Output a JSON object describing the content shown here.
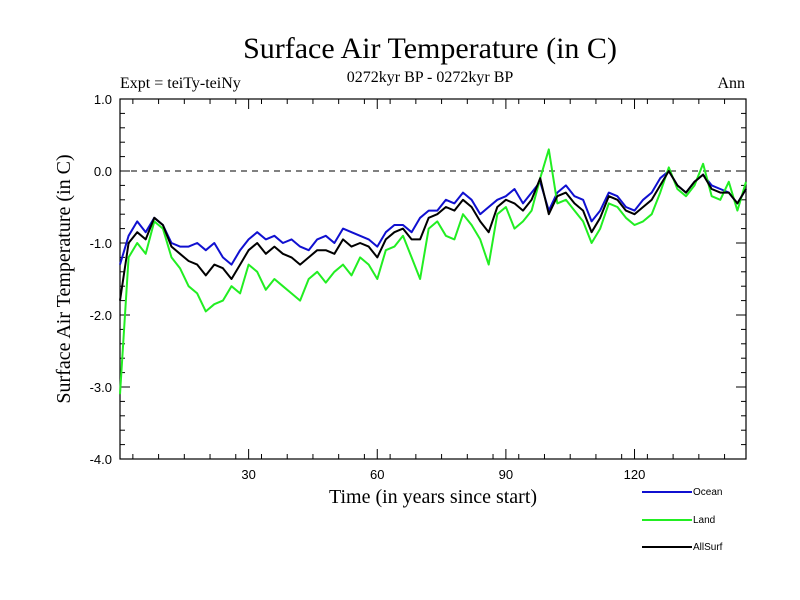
{
  "chart_data": {
    "type": "line",
    "title": "Surface Air Temperature (in C)",
    "subtitle": "0272kyr BP - 0272kyr BP",
    "experiment": "Expt = teiTy-teiNy",
    "season": "Ann",
    "xlabel": "Time (in years since start)",
    "ylabel": "Surface Air Temperature (in C)",
    "xlim": [
      0,
      146
    ],
    "ylim": [
      -4.0,
      1.0
    ],
    "xticks": [
      30,
      60,
      90,
      120
    ],
    "yticks": [
      -4.0,
      -3.0,
      -2.0,
      -1.0,
      0.0,
      1.0
    ],
    "ytick_labels": [
      "-4.0",
      "-3.0",
      "-2.0",
      "-1.0",
      "0.0",
      "1.0"
    ],
    "reference_line": 0.0,
    "series": [
      {
        "name": "Ocean",
        "color": "#1010d0",
        "x": [
          0,
          2,
          4,
          6,
          8,
          10,
          12,
          14,
          16,
          18,
          20,
          22,
          24,
          26,
          28,
          30,
          32,
          34,
          36,
          38,
          40,
          42,
          44,
          46,
          48,
          50,
          52,
          54,
          56,
          58,
          60,
          62,
          64,
          66,
          68,
          70,
          72,
          74,
          76,
          78,
          80,
          82,
          84,
          86,
          88,
          90,
          92,
          94,
          96,
          98,
          100,
          102,
          104,
          106,
          108,
          110,
          112,
          114,
          116,
          118,
          120,
          122,
          124,
          126,
          128,
          130,
          132,
          134,
          136,
          138,
          140,
          142,
          144,
          146
        ],
        "values": [
          -1.3,
          -0.9,
          -0.7,
          -0.85,
          -0.65,
          -0.75,
          -1.0,
          -1.05,
          -1.05,
          -1.0,
          -1.1,
          -1.0,
          -1.2,
          -1.3,
          -1.1,
          -0.95,
          -0.85,
          -0.95,
          -0.9,
          -1.0,
          -0.95,
          -1.05,
          -1.1,
          -0.95,
          -0.9,
          -1.0,
          -0.8,
          -0.85,
          -0.9,
          -0.95,
          -1.05,
          -0.85,
          -0.75,
          -0.75,
          -0.85,
          -0.65,
          -0.55,
          -0.55,
          -0.4,
          -0.45,
          -0.3,
          -0.4,
          -0.6,
          -0.5,
          -0.4,
          -0.35,
          -0.25,
          -0.45,
          -0.3,
          -0.15,
          -0.55,
          -0.3,
          -0.2,
          -0.35,
          -0.4,
          -0.7,
          -0.55,
          -0.3,
          -0.35,
          -0.5,
          -0.55,
          -0.4,
          -0.3,
          -0.1,
          0.0,
          -0.2,
          -0.3,
          -0.15,
          -0.05,
          -0.2,
          -0.25,
          -0.3,
          -0.45,
          -0.25
        ]
      },
      {
        "name": "Land",
        "color": "#22ee22",
        "x": [
          0,
          2,
          4,
          6,
          8,
          10,
          12,
          14,
          16,
          18,
          20,
          22,
          24,
          26,
          28,
          30,
          32,
          34,
          36,
          38,
          40,
          42,
          44,
          46,
          48,
          50,
          52,
          54,
          56,
          58,
          60,
          62,
          64,
          66,
          68,
          70,
          72,
          74,
          76,
          78,
          80,
          82,
          84,
          86,
          88,
          90,
          92,
          94,
          96,
          98,
          100,
          102,
          104,
          106,
          108,
          110,
          112,
          114,
          116,
          118,
          120,
          122,
          124,
          126,
          128,
          130,
          132,
          134,
          136,
          138,
          140,
          142,
          144,
          146
        ],
        "values": [
          -3.1,
          -1.2,
          -1.0,
          -1.15,
          -0.7,
          -0.8,
          -1.2,
          -1.35,
          -1.6,
          -1.7,
          -1.95,
          -1.85,
          -1.8,
          -1.6,
          -1.7,
          -1.3,
          -1.4,
          -1.65,
          -1.5,
          -1.6,
          -1.7,
          -1.8,
          -1.5,
          -1.4,
          -1.55,
          -1.4,
          -1.3,
          -1.45,
          -1.2,
          -1.3,
          -1.5,
          -1.1,
          -1.05,
          -0.9,
          -1.2,
          -1.5,
          -0.8,
          -0.7,
          -0.9,
          -0.95,
          -0.6,
          -0.75,
          -0.95,
          -1.3,
          -0.6,
          -0.5,
          -0.8,
          -0.7,
          -0.55,
          -0.1,
          0.3,
          -0.45,
          -0.4,
          -0.55,
          -0.7,
          -1.0,
          -0.8,
          -0.45,
          -0.5,
          -0.65,
          -0.75,
          -0.7,
          -0.6,
          -0.3,
          0.05,
          -0.25,
          -0.35,
          -0.2,
          0.1,
          -0.35,
          -0.4,
          -0.15,
          -0.55,
          -0.15
        ]
      },
      {
        "name": "AllSurf",
        "color": "#000000",
        "x": [
          0,
          2,
          4,
          6,
          8,
          10,
          12,
          14,
          16,
          18,
          20,
          22,
          24,
          26,
          28,
          30,
          32,
          34,
          36,
          38,
          40,
          42,
          44,
          46,
          48,
          50,
          52,
          54,
          56,
          58,
          60,
          62,
          64,
          66,
          68,
          70,
          72,
          74,
          76,
          78,
          80,
          82,
          84,
          86,
          88,
          90,
          92,
          94,
          96,
          98,
          100,
          102,
          104,
          106,
          108,
          110,
          112,
          114,
          116,
          118,
          120,
          122,
          124,
          126,
          128,
          130,
          132,
          134,
          136,
          138,
          140,
          142,
          144,
          146
        ],
        "values": [
          -1.8,
          -1.0,
          -0.85,
          -0.95,
          -0.65,
          -0.75,
          -1.05,
          -1.15,
          -1.25,
          -1.3,
          -1.45,
          -1.3,
          -1.35,
          -1.5,
          -1.3,
          -1.1,
          -1.0,
          -1.15,
          -1.05,
          -1.15,
          -1.2,
          -1.3,
          -1.2,
          -1.1,
          -1.1,
          -1.15,
          -0.95,
          -1.05,
          -1.0,
          -1.05,
          -1.2,
          -0.95,
          -0.85,
          -0.8,
          -0.95,
          -0.95,
          -0.65,
          -0.6,
          -0.5,
          -0.55,
          -0.4,
          -0.5,
          -0.7,
          -0.85,
          -0.5,
          -0.4,
          -0.45,
          -0.55,
          -0.4,
          -0.1,
          -0.6,
          -0.35,
          -0.3,
          -0.45,
          -0.55,
          -0.85,
          -0.65,
          -0.35,
          -0.4,
          -0.55,
          -0.6,
          -0.5,
          -0.4,
          -0.2,
          0.0,
          -0.2,
          -0.3,
          -0.15,
          -0.05,
          -0.25,
          -0.3,
          -0.3,
          -0.45,
          -0.25
        ]
      }
    ],
    "legend": [
      "Ocean",
      "Land",
      "AllSurf"
    ],
    "legend_position": "bottom-right"
  }
}
